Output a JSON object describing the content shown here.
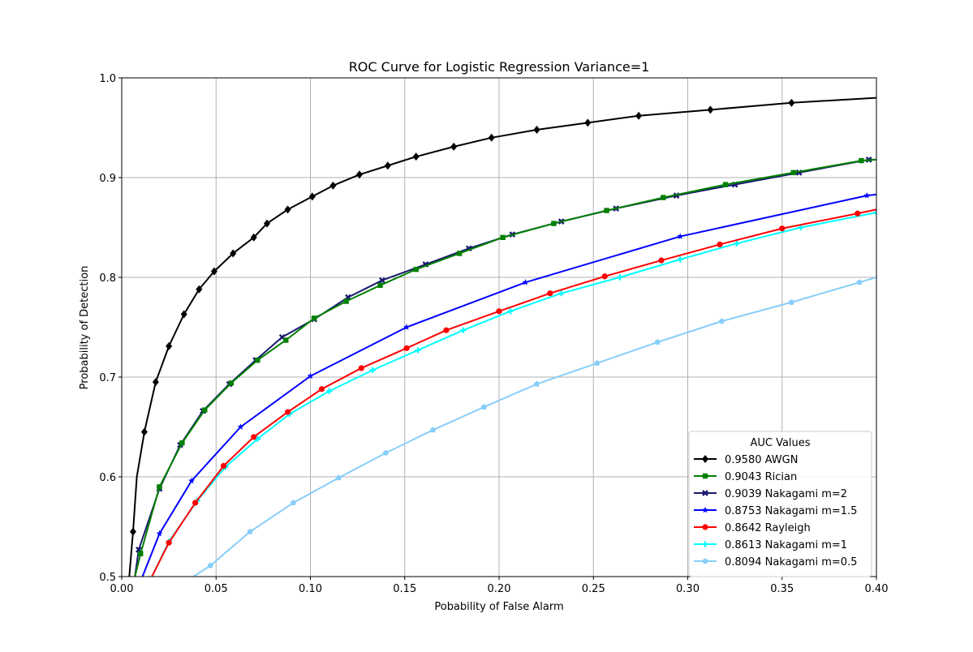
{
  "chart_data": {
    "type": "line",
    "title": "ROC Curve for Logistic Regression Variance=1",
    "xlabel": "Pobability of False Alarm",
    "ylabel": "Probability of Detection",
    "xlim": [
      0.0,
      0.4
    ],
    "ylim": [
      0.5,
      1.0
    ],
    "xticks": [
      0.0,
      0.05,
      0.1,
      0.15,
      0.2,
      0.25,
      0.3,
      0.35,
      0.4
    ],
    "yticks": [
      0.5,
      0.6,
      0.7,
      0.8,
      0.9,
      1.0
    ],
    "xtick_labels": [
      "0.00",
      "0.05",
      "0.10",
      "0.15",
      "0.20",
      "0.25",
      "0.30",
      "0.35",
      "0.40"
    ],
    "ytick_labels": [
      "0.5",
      "0.6",
      "0.7",
      "0.8",
      "0.9",
      "1.0"
    ],
    "grid": true,
    "legend": {
      "title": "AUC Values",
      "placement": "lower-right"
    },
    "series": [
      {
        "name": "0.9580 AWGN",
        "color": "#000000",
        "marker": "diamond",
        "x": [
          0.004,
          0.006,
          0.008,
          0.012,
          0.018,
          0.025,
          0.033,
          0.041,
          0.049,
          0.059,
          0.07,
          0.077,
          0.088,
          0.101,
          0.112,
          0.126,
          0.141,
          0.156,
          0.176,
          0.196,
          0.22,
          0.247,
          0.274,
          0.312,
          0.355,
          0.4
        ],
        "y": [
          0.5,
          0.545,
          0.6,
          0.645,
          0.695,
          0.731,
          0.763,
          0.788,
          0.806,
          0.824,
          0.84,
          0.854,
          0.868,
          0.881,
          0.892,
          0.903,
          0.912,
          0.921,
          0.931,
          0.94,
          0.948,
          0.955,
          0.962,
          0.968,
          0.975,
          0.98
        ],
        "marker_x": [
          0.006,
          0.012,
          0.018,
          0.025,
          0.033,
          0.041,
          0.049,
          0.059,
          0.07,
          0.077,
          0.088,
          0.101,
          0.112,
          0.126,
          0.141,
          0.156,
          0.176,
          0.196,
          0.22,
          0.247,
          0.274,
          0.312,
          0.355
        ],
        "marker_y": [
          0.545,
          0.645,
          0.695,
          0.731,
          0.763,
          0.788,
          0.806,
          0.824,
          0.84,
          0.854,
          0.868,
          0.881,
          0.892,
          0.903,
          0.912,
          0.921,
          0.931,
          0.94,
          0.948,
          0.955,
          0.962,
          0.968,
          0.975
        ]
      },
      {
        "name": "0.9043 Rician",
        "color": "#008000",
        "marker": "square",
        "x": [
          0.007,
          0.01,
          0.02,
          0.032,
          0.044,
          0.058,
          0.072,
          0.087,
          0.102,
          0.119,
          0.137,
          0.156,
          0.179,
          0.202,
          0.229,
          0.257,
          0.287,
          0.32,
          0.356,
          0.392,
          0.4
        ],
        "y": [
          0.5,
          0.523,
          0.59,
          0.634,
          0.667,
          0.694,
          0.717,
          0.737,
          0.759,
          0.776,
          0.792,
          0.808,
          0.824,
          0.84,
          0.854,
          0.867,
          0.88,
          0.893,
          0.905,
          0.917,
          0.918
        ],
        "marker_x": [
          0.01,
          0.02,
          0.032,
          0.044,
          0.058,
          0.072,
          0.087,
          0.102,
          0.119,
          0.137,
          0.156,
          0.179,
          0.202,
          0.229,
          0.257,
          0.287,
          0.32,
          0.356,
          0.392
        ],
        "marker_y": [
          0.523,
          0.59,
          0.634,
          0.667,
          0.694,
          0.717,
          0.737,
          0.759,
          0.776,
          0.792,
          0.808,
          0.824,
          0.84,
          0.854,
          0.867,
          0.88,
          0.893,
          0.905,
          0.917
        ]
      },
      {
        "name": "0.9039 Nakagami m=2",
        "color": "#191970",
        "marker": "x",
        "x": [
          0.007,
          0.009,
          0.02,
          0.031,
          0.043,
          0.057,
          0.071,
          0.085,
          0.102,
          0.12,
          0.138,
          0.161,
          0.184,
          0.207,
          0.233,
          0.262,
          0.294,
          0.325,
          0.359,
          0.396,
          0.4
        ],
        "y": [
          0.5,
          0.527,
          0.588,
          0.632,
          0.666,
          0.693,
          0.717,
          0.74,
          0.758,
          0.78,
          0.797,
          0.813,
          0.829,
          0.843,
          0.856,
          0.869,
          0.882,
          0.893,
          0.905,
          0.918,
          0.918
        ],
        "marker_x": [
          0.009,
          0.02,
          0.031,
          0.043,
          0.057,
          0.071,
          0.085,
          0.102,
          0.12,
          0.138,
          0.161,
          0.184,
          0.207,
          0.233,
          0.262,
          0.294,
          0.325,
          0.359,
          0.396
        ],
        "marker_y": [
          0.527,
          0.588,
          0.632,
          0.666,
          0.693,
          0.717,
          0.74,
          0.758,
          0.78,
          0.797,
          0.813,
          0.829,
          0.843,
          0.856,
          0.869,
          0.882,
          0.893,
          0.905,
          0.918
        ]
      },
      {
        "name": "0.8753 Nakagami m=1.5",
        "color": "#0000ff",
        "marker": "star",
        "x": [
          0.011,
          0.02,
          0.037,
          0.063,
          0.1,
          0.151,
          0.214,
          0.296,
          0.395,
          0.4
        ],
        "y": [
          0.5,
          0.543,
          0.596,
          0.65,
          0.701,
          0.75,
          0.795,
          0.841,
          0.882,
          0.883
        ],
        "marker_x": [
          0.02,
          0.037,
          0.063,
          0.1,
          0.151,
          0.214,
          0.296,
          0.395
        ],
        "marker_y": [
          0.543,
          0.596,
          0.65,
          0.701,
          0.75,
          0.795,
          0.841,
          0.882
        ]
      },
      {
        "name": "0.8642 Rayleigh",
        "color": "#ff0000",
        "marker": "circle",
        "x": [
          0.016,
          0.025,
          0.039,
          0.054,
          0.07,
          0.088,
          0.106,
          0.127,
          0.151,
          0.172,
          0.2,
          0.227,
          0.256,
          0.286,
          0.317,
          0.35,
          0.39,
          0.4
        ],
        "y": [
          0.5,
          0.534,
          0.574,
          0.611,
          0.64,
          0.665,
          0.688,
          0.709,
          0.729,
          0.747,
          0.766,
          0.784,
          0.801,
          0.817,
          0.833,
          0.849,
          0.864,
          0.868
        ],
        "marker_x": [
          0.025,
          0.039,
          0.054,
          0.07,
          0.088,
          0.106,
          0.127,
          0.151,
          0.172,
          0.2,
          0.227,
          0.256,
          0.286,
          0.317,
          0.35,
          0.39
        ],
        "marker_y": [
          0.534,
          0.574,
          0.611,
          0.64,
          0.665,
          0.688,
          0.709,
          0.729,
          0.747,
          0.766,
          0.784,
          0.801,
          0.817,
          0.833,
          0.849,
          0.864
        ]
      },
      {
        "name": "0.8613 Nakagami m=1",
        "color": "#00ffff",
        "marker": "plus",
        "x": [
          0.016,
          0.025,
          0.04,
          0.055,
          0.072,
          0.089,
          0.11,
          0.133,
          0.157,
          0.181,
          0.206,
          0.233,
          0.264,
          0.296,
          0.326,
          0.36,
          0.4
        ],
        "y": [
          0.5,
          0.535,
          0.576,
          0.61,
          0.638,
          0.663,
          0.686,
          0.707,
          0.727,
          0.747,
          0.766,
          0.784,
          0.8,
          0.818,
          0.834,
          0.85,
          0.865
        ],
        "marker_x": [
          0.025,
          0.04,
          0.055,
          0.072,
          0.089,
          0.11,
          0.133,
          0.157,
          0.181,
          0.206,
          0.233,
          0.264,
          0.296,
          0.326,
          0.36,
          0.4
        ],
        "marker_y": [
          0.535,
          0.576,
          0.61,
          0.638,
          0.663,
          0.686,
          0.707,
          0.727,
          0.747,
          0.766,
          0.784,
          0.8,
          0.818,
          0.834,
          0.85,
          0.865
        ]
      },
      {
        "name": "0.8094 Nakagami m=0.5",
        "color": "#87cefa",
        "marker": "pentagon",
        "x": [
          0.038,
          0.047,
          0.068,
          0.091,
          0.115,
          0.14,
          0.165,
          0.192,
          0.22,
          0.252,
          0.284,
          0.318,
          0.355,
          0.391,
          0.4
        ],
        "y": [
          0.5,
          0.511,
          0.545,
          0.574,
          0.599,
          0.624,
          0.647,
          0.67,
          0.693,
          0.714,
          0.735,
          0.756,
          0.775,
          0.795,
          0.8
        ],
        "marker_x": [
          0.047,
          0.068,
          0.091,
          0.115,
          0.14,
          0.165,
          0.192,
          0.22,
          0.252,
          0.284,
          0.318,
          0.355,
          0.391
        ],
        "marker_y": [
          0.511,
          0.545,
          0.574,
          0.599,
          0.624,
          0.647,
          0.67,
          0.693,
          0.714,
          0.735,
          0.756,
          0.775,
          0.795
        ]
      }
    ]
  }
}
